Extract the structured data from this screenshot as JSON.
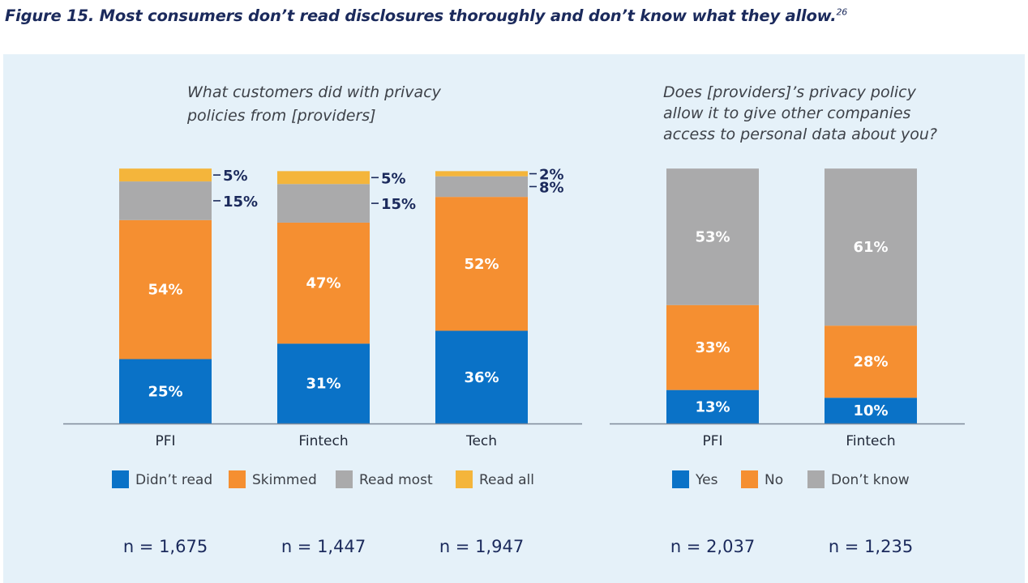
{
  "figure": {
    "title": "Figure 15. Most consumers don’t read disclosures thoroughly and don’t know what they allow.",
    "footnote": "26"
  },
  "chart_data": [
    {
      "type": "bar",
      "stacked": true,
      "title_lines": [
        "What customers did with privacy",
        "policies from [providers]"
      ],
      "categories": [
        "PFI",
        "Fintech",
        "Tech"
      ],
      "series": [
        {
          "name": "Didn’t read",
          "color": "#0a72c7",
          "values": [
            25,
            31,
            36
          ]
        },
        {
          "name": "Skimmed",
          "color": "#f58f31",
          "values": [
            54,
            47,
            52
          ]
        },
        {
          "name": "Read most",
          "color": "#aaaaab",
          "values": [
            15,
            15,
            8
          ]
        },
        {
          "name": "Read all",
          "color": "#f4b53b",
          "values": [
            5,
            5,
            2
          ]
        }
      ],
      "value_labels": [
        [
          "25%",
          "31%",
          "36%"
        ],
        [
          "54%",
          "47%",
          "52%"
        ],
        [
          "15%",
          "15%",
          "8%"
        ],
        [
          "5%",
          "5%",
          "2%"
        ]
      ],
      "sample_sizes": [
        "n = 1,675",
        "n = 1,447",
        "n = 1,947"
      ],
      "legend_position": "bottom"
    },
    {
      "type": "bar",
      "stacked": true,
      "title_lines": [
        "Does [providers]’s privacy policy",
        "allow it to give other companies",
        "access to personal data about you?"
      ],
      "categories": [
        "PFI",
        "Fintech"
      ],
      "series": [
        {
          "name": "Yes",
          "color": "#0a72c7",
          "values": [
            13,
            10
          ]
        },
        {
          "name": "No",
          "color": "#f58f31",
          "values": [
            33,
            28
          ]
        },
        {
          "name": "Don’t know",
          "color": "#aaaaab",
          "values": [
            53,
            61
          ]
        }
      ],
      "value_labels": [
        [
          "13%",
          "10%"
        ],
        [
          "33%",
          "28%"
        ],
        [
          "53%",
          "61%"
        ]
      ],
      "sample_sizes": [
        "n = 2,037",
        "n = 1,235"
      ],
      "legend_position": "bottom"
    }
  ]
}
